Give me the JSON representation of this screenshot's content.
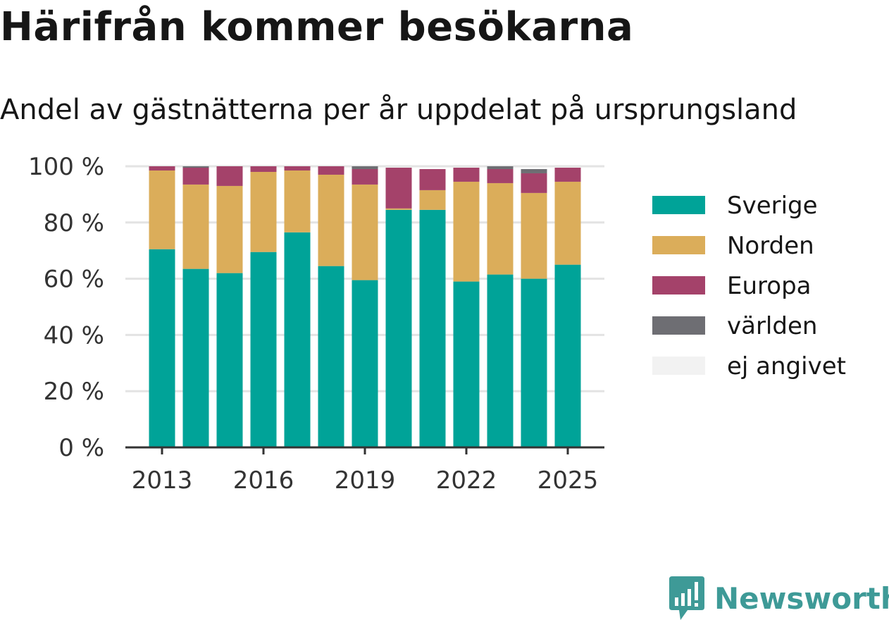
{
  "title": "Härifrån kommer besökarna",
  "subtitle": "Andel av gästnätterna per år uppdelat på ursprungsland",
  "brand": {
    "name": "Newsworthy",
    "color": "#3e9a97",
    "icon": "bar-chart-speech-bubble-icon"
  },
  "chart_data": {
    "type": "bar",
    "stacked": true,
    "categories": [
      "2013",
      "2014",
      "2015",
      "2016",
      "2017",
      "2018",
      "2019",
      "2020",
      "2021",
      "2022",
      "2023",
      "2024",
      "2025"
    ],
    "x_tick_labels": [
      "2013",
      "2016",
      "2019",
      "2022",
      "2025"
    ],
    "y_ticks": [
      "0 %",
      "20 %",
      "40 %",
      "60 %",
      "80 %",
      "100 %"
    ],
    "ylim": [
      0,
      100
    ],
    "grid": true,
    "legend_position": "right",
    "series": [
      {
        "name": "Sverige",
        "color": "#00a398",
        "values": [
          70.5,
          63.5,
          62,
          69.5,
          76.5,
          64.5,
          59.5,
          84.5,
          84.5,
          59,
          61.5,
          60,
          65
        ]
      },
      {
        "name": "Norden",
        "color": "#dbad5a",
        "values": [
          28,
          30,
          31,
          28.5,
          22,
          32.5,
          34,
          0.5,
          7,
          35.5,
          32.5,
          30.5,
          29.5
        ]
      },
      {
        "name": "Europa",
        "color": "#a4426a",
        "values": [
          1.5,
          6,
          7,
          2,
          1.5,
          3,
          5.5,
          14.5,
          7.5,
          5,
          5,
          7,
          5
        ]
      },
      {
        "name": "världen",
        "color": "#6e6e73",
        "values": [
          0,
          0.5,
          0,
          0,
          0,
          0,
          1,
          0,
          0,
          0,
          1,
          1.5,
          0
        ]
      },
      {
        "name": "ej angivet",
        "color": "#f2f2f2",
        "values": [
          0,
          0,
          0,
          0,
          0,
          0,
          0,
          0,
          0,
          0,
          0,
          0,
          0
        ]
      }
    ]
  }
}
